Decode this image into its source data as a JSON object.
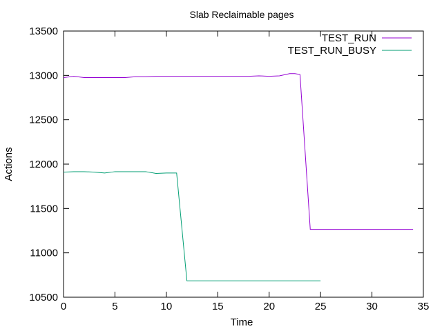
{
  "chart_data": {
    "type": "line",
    "title": "Slab Reclaimable pages",
    "xlabel": "Time",
    "ylabel": "Actions",
    "xlim": [
      0,
      35
    ],
    "ylim": [
      10500,
      13500
    ],
    "xticks": [
      0,
      5,
      10,
      15,
      20,
      25,
      30,
      35
    ],
    "yticks": [
      10500,
      11000,
      11500,
      12000,
      12500,
      13000,
      13500
    ],
    "grid": false,
    "legend_position": "top-right",
    "series": [
      {
        "name": "TEST_RUN",
        "color": "#9400d3",
        "points": [
          [
            0,
            12975
          ],
          [
            1,
            12990
          ],
          [
            2,
            12975
          ],
          [
            3,
            12975
          ],
          [
            4,
            12975
          ],
          [
            5,
            12975
          ],
          [
            6,
            12975
          ],
          [
            7,
            12985
          ],
          [
            8,
            12985
          ],
          [
            9,
            12990
          ],
          [
            10,
            12990
          ],
          [
            11,
            12990
          ],
          [
            12,
            12990
          ],
          [
            13,
            12990
          ],
          [
            14,
            12990
          ],
          [
            15,
            12990
          ],
          [
            16,
            12990
          ],
          [
            17,
            12990
          ],
          [
            18,
            12990
          ],
          [
            19,
            12995
          ],
          [
            20,
            12990
          ],
          [
            21,
            12995
          ],
          [
            22,
            13020
          ],
          [
            22.5,
            13020
          ],
          [
            23,
            13010
          ],
          [
            24,
            11265
          ],
          [
            25,
            11265
          ],
          [
            26,
            11265
          ],
          [
            27,
            11265
          ],
          [
            28,
            11265
          ],
          [
            29,
            11265
          ],
          [
            30,
            11265
          ],
          [
            31,
            11265
          ],
          [
            32,
            11265
          ],
          [
            33,
            11265
          ],
          [
            34,
            11265
          ]
        ]
      },
      {
        "name": "TEST_RUN_BUSY",
        "color": "#009e73",
        "points": [
          [
            0,
            11910
          ],
          [
            1,
            11915
          ],
          [
            2,
            11915
          ],
          [
            3,
            11910
          ],
          [
            4,
            11900
          ],
          [
            5,
            11915
          ],
          [
            6,
            11915
          ],
          [
            7,
            11915
          ],
          [
            8,
            11915
          ],
          [
            9,
            11895
          ],
          [
            10,
            11900
          ],
          [
            11,
            11900
          ],
          [
            12,
            10685
          ],
          [
            13,
            10685
          ],
          [
            14,
            10685
          ],
          [
            15,
            10685
          ],
          [
            16,
            10685
          ],
          [
            17,
            10685
          ],
          [
            18,
            10685
          ],
          [
            19,
            10685
          ],
          [
            20,
            10685
          ],
          [
            21,
            10685
          ],
          [
            22,
            10685
          ],
          [
            23,
            10685
          ],
          [
            24,
            10685
          ],
          [
            25,
            10685
          ]
        ]
      }
    ]
  }
}
